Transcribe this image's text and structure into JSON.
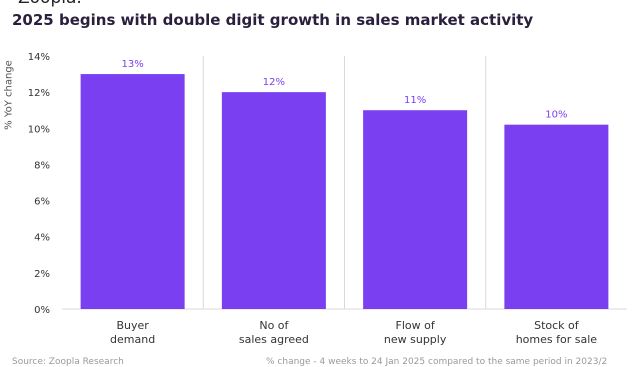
{
  "top_partial_text": "Zoopla.",
  "title": "2025 begins with double digit growth in sales market activity",
  "footer": {
    "source": "Source: Zoopla Research",
    "note": "% change - 4 weeks to 24 Jan 2025 compared to the same period in 2023/2"
  },
  "colors": {
    "bar": "#7B3FF2",
    "label": "#7B3FF2",
    "grid": "#d9d9d9",
    "axis_text": "#333333"
  },
  "chart_data": {
    "type": "bar",
    "title": "2025 begins with double digit growth in sales market activity",
    "ylabel": "% YoY change",
    "xlabel": "",
    "categories": [
      [
        "Buyer",
        "demand"
      ],
      [
        "No of",
        "sales agreed"
      ],
      [
        "Flow of",
        "new supply"
      ],
      [
        "Stock of",
        "homes for sale"
      ]
    ],
    "values": [
      13,
      12,
      11,
      10.2
    ],
    "data_labels": [
      "13%",
      "12%",
      "11%",
      "10%"
    ],
    "yticks": [
      0,
      2,
      4,
      6,
      8,
      10,
      12,
      14
    ],
    "ytick_labels": [
      "0%",
      "2%",
      "4%",
      "6%",
      "8%",
      "10%",
      "12%",
      "14%"
    ],
    "ylim": [
      0,
      14
    ],
    "grid": "vertical separators"
  }
}
